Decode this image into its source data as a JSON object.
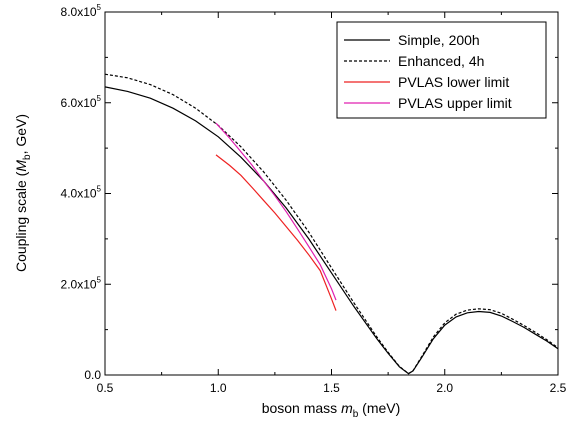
{
  "chart_data": {
    "type": "line",
    "xlabel": {
      "prefix": "boson mass ",
      "var": "m",
      "sub": "b",
      "suffix": " (meV)"
    },
    "ylabel": {
      "prefix": "Coupling scale  (",
      "var": "M",
      "sub": "b",
      "suffix": ", GeV)"
    },
    "xlim": [
      0.5,
      2.5
    ],
    "ylim": [
      0,
      800000
    ],
    "x_ticks": [
      {
        "value": 0.5,
        "label": "0.5"
      },
      {
        "value": 1.0,
        "label": "1.0"
      },
      {
        "value": 1.5,
        "label": "1.5"
      },
      {
        "value": 2.0,
        "label": "2.0"
      },
      {
        "value": 2.5,
        "label": "2.5"
      }
    ],
    "y_ticks": [
      {
        "value": 0,
        "label": "0.0",
        "exp": ""
      },
      {
        "value": 200000,
        "label": "2.0x10",
        "exp": "5"
      },
      {
        "value": 400000,
        "label": "4.0x10",
        "exp": "5"
      },
      {
        "value": 600000,
        "label": "6.0x10",
        "exp": "5"
      },
      {
        "value": 800000,
        "label": "8.0x10",
        "exp": "5"
      }
    ],
    "grid": false,
    "legend_position": "top-right",
    "series": [
      {
        "name": "Simple, 200h",
        "color": "#000000",
        "dash": "solid",
        "x": [
          0.5,
          0.6,
          0.7,
          0.8,
          0.9,
          1.0,
          1.1,
          1.2,
          1.3,
          1.4,
          1.5,
          1.6,
          1.7,
          1.75,
          1.8,
          1.84,
          1.86,
          1.9,
          1.95,
          2.0,
          2.05,
          2.1,
          2.15,
          2.2,
          2.25,
          2.3,
          2.35,
          2.4,
          2.45,
          2.5
        ],
        "y": [
          635000,
          625000,
          610000,
          588000,
          560000,
          525000,
          480000,
          428000,
          368000,
          300000,
          225000,
          150000,
          80000,
          48000,
          18000,
          3000,
          9000,
          40000,
          80000,
          110000,
          128000,
          137000,
          140000,
          138000,
          130000,
          118000,
          105000,
          90000,
          75000,
          58000
        ]
      },
      {
        "name": "Enhanced, 4h",
        "color": "#000000",
        "dash": "dashed",
        "x": [
          0.5,
          0.6,
          0.7,
          0.8,
          0.9,
          1.0,
          1.1,
          1.2,
          1.3,
          1.4,
          1.5,
          1.6,
          1.7,
          1.75,
          1.8,
          1.84,
          1.86,
          1.9,
          1.95,
          2.0,
          2.05,
          2.1,
          2.15,
          2.2,
          2.25,
          2.3,
          2.35,
          2.4,
          2.45,
          2.5
        ],
        "y": [
          663000,
          655000,
          640000,
          618000,
          588000,
          550000,
          503000,
          448000,
          385000,
          315000,
          236000,
          158000,
          84000,
          50000,
          19000,
          3000,
          9500,
          42000,
          84000,
          115000,
          134000,
          143000,
          146000,
          144000,
          136000,
          123000,
          109000,
          94000,
          78000,
          60000
        ]
      },
      {
        "name": "PVLAS lower limit",
        "color": "#ee2222",
        "dash": "solid",
        "x": [
          0.99,
          1.05,
          1.1,
          1.15,
          1.2,
          1.25,
          1.3,
          1.35,
          1.4,
          1.45,
          1.5,
          1.52
        ],
        "y": [
          485000,
          462000,
          440000,
          413000,
          385000,
          357000,
          327000,
          297000,
          265000,
          230000,
          168000,
          142000
        ]
      },
      {
        "name": "PVLAS upper limit",
        "color": "#e020b0",
        "dash": "solid",
        "x": [
          0.99,
          1.05,
          1.1,
          1.15,
          1.2,
          1.25,
          1.3,
          1.35,
          1.4,
          1.45,
          1.5,
          1.52
        ],
        "y": [
          555000,
          522000,
          492000,
          462000,
          428000,
          395000,
          360000,
          322000,
          283000,
          243000,
          190000,
          165000
        ]
      }
    ]
  }
}
